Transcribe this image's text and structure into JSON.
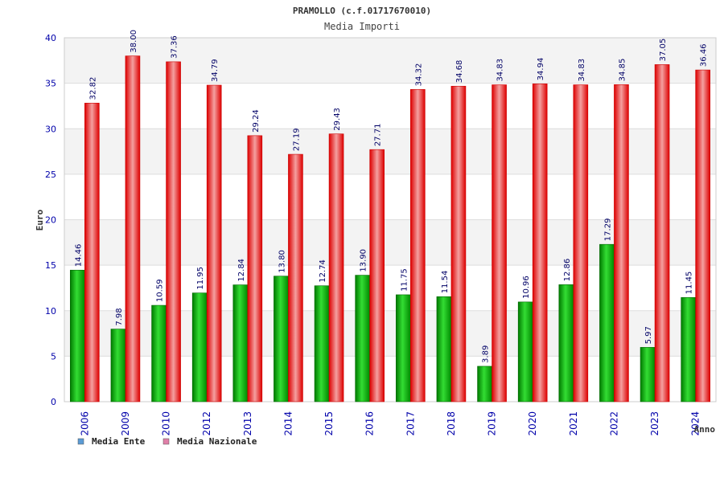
{
  "chart_data": {
    "type": "bar",
    "title": "PRAMOLLO (c.f.01717670010)",
    "subtitle": "Media Importi",
    "xlabel": "Anno",
    "ylabel": "Euro",
    "ylim": [
      0,
      40
    ],
    "yticks": [
      0,
      5,
      10,
      15,
      20,
      25,
      30,
      35,
      40
    ],
    "grid": true,
    "legend_position": "bottom-left",
    "categories": [
      "2006",
      "2009",
      "2010",
      "2012",
      "2013",
      "2014",
      "2015",
      "2016",
      "2017",
      "2018",
      "2019",
      "2020",
      "2021",
      "2022",
      "2023",
      "2024"
    ],
    "series": [
      {
        "name": "Media Ente",
        "color": "#00aa00",
        "legend_color": "#5b9bd5",
        "values": [
          14.46,
          7.98,
          10.59,
          11.95,
          12.84,
          13.8,
          12.74,
          13.9,
          11.75,
          11.54,
          3.89,
          10.96,
          12.86,
          17.29,
          5.97,
          11.45
        ],
        "labels": [
          "14.46",
          "7.98",
          "10.59",
          "11.95",
          "12.84",
          "13.80",
          "12.74",
          "13.90",
          "11.75",
          "11.54",
          "3.89",
          "10.96",
          "12.86",
          "17.29",
          "5.97",
          "11.45"
        ]
      },
      {
        "name": "Media Nazionale",
        "color": "#ee0000",
        "legend_color": "#e07fa8",
        "values": [
          32.82,
          38.0,
          37.36,
          34.79,
          29.24,
          27.19,
          29.43,
          27.71,
          34.32,
          34.68,
          34.83,
          34.94,
          34.83,
          34.85,
          37.05,
          36.46
        ],
        "labels": [
          "32.82",
          "38.00",
          "37.36",
          "34.79",
          "29.24",
          "27.19",
          "29.43",
          "27.71",
          "34.32",
          "34.68",
          "34.83",
          "34.94",
          "34.83",
          "34.85",
          "37.05",
          "36.46"
        ]
      }
    ]
  }
}
